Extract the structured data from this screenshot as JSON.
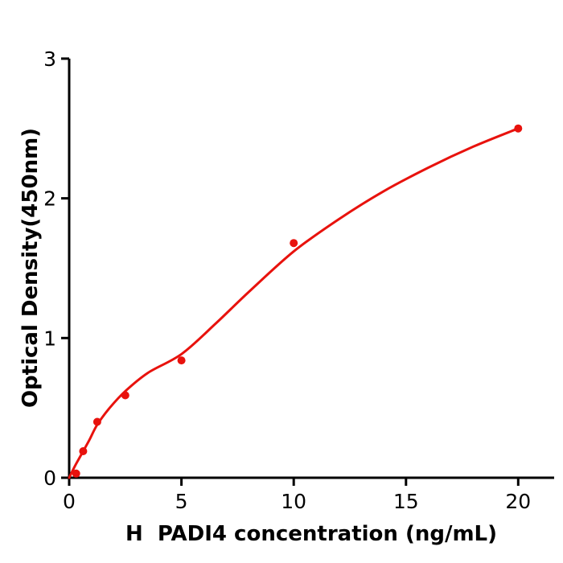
{
  "figure": {
    "background": "#ffffff"
  },
  "chart_data": {
    "type": "scatter",
    "title": "",
    "xlabel": "H  PADI4 concentration (ng/mL)",
    "ylabel": "Optical Density(450nm)",
    "x_tick_labels": [
      "0",
      "5",
      "10",
      "15",
      "20"
    ],
    "x_tick_values": [
      0,
      5,
      10,
      15,
      20
    ],
    "y_tick_labels": [
      "0",
      "1",
      "2",
      "3"
    ],
    "y_tick_values": [
      0,
      1,
      2,
      3
    ],
    "xlim": [
      0,
      21.6
    ],
    "ylim": [
      0,
      3
    ],
    "grid": false,
    "legend": null,
    "marker_color": "#e8120d",
    "line_color": "#e8120d",
    "axis_color": "#000000",
    "points": [
      {
        "x": 0.3125,
        "y": 0.03
      },
      {
        "x": 0.625,
        "y": 0.19
      },
      {
        "x": 1.25,
        "y": 0.4
      },
      {
        "x": 2.5,
        "y": 0.59
      },
      {
        "x": 5,
        "y": 0.84
      },
      {
        "x": 10,
        "y": 1.68
      },
      {
        "x": 20,
        "y": 2.5
      }
    ],
    "fit_curve": [
      {
        "x": 0,
        "y": 0.0
      },
      {
        "x": 0.15,
        "y": 0.05
      },
      {
        "x": 0.3125,
        "y": 0.1
      },
      {
        "x": 0.625,
        "y": 0.19
      },
      {
        "x": 0.9,
        "y": 0.27
      },
      {
        "x": 1.25,
        "y": 0.38
      },
      {
        "x": 1.8,
        "y": 0.5
      },
      {
        "x": 2.5,
        "y": 0.62
      },
      {
        "x": 3.5,
        "y": 0.75
      },
      {
        "x": 5,
        "y": 0.885
      },
      {
        "x": 6.5,
        "y": 1.1
      },
      {
        "x": 8,
        "y": 1.33
      },
      {
        "x": 10,
        "y": 1.62
      },
      {
        "x": 12,
        "y": 1.85
      },
      {
        "x": 14,
        "y": 2.05
      },
      {
        "x": 16,
        "y": 2.22
      },
      {
        "x": 18,
        "y": 2.37
      },
      {
        "x": 20,
        "y": 2.5
      }
    ]
  }
}
